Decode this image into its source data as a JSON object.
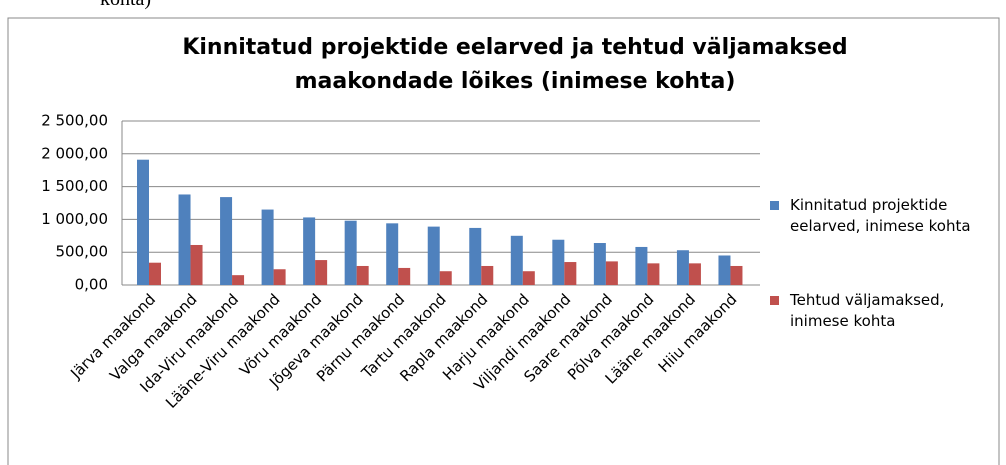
{
  "caption_fragment": "kohta)",
  "chart_data": {
    "type": "bar",
    "title": [
      "Kinnitatud projektide eelarved ja tehtud väljamaksed",
      "maakondade lõikes (inimese kohta)"
    ],
    "categories": [
      "Järva maakond",
      "Valga maakond",
      "Ida-Viru maakond",
      "Lääne-Viru maakond",
      "Võru maakond",
      "Jõgeva maakond",
      "Pärnu maakond",
      "Tartu maakond",
      "Rapla maakond",
      "Harju maakond",
      "Viljandi maakond",
      "Saare maakond",
      "Põlva maakond",
      "Lääne maakond",
      "Hiiu maakond"
    ],
    "series": [
      {
        "name": "Kinnitatud projektide eelarved, inimese kohta",
        "color": "#4f81bd",
        "values": [
          1910,
          1380,
          1340,
          1150,
          1030,
          980,
          940,
          890,
          870,
          750,
          690,
          640,
          580,
          530,
          450
        ]
      },
      {
        "name": "Tehtud väljamaksed, inimese kohta",
        "color": "#c0504d",
        "values": [
          340,
          610,
          150,
          240,
          380,
          290,
          260,
          210,
          290,
          210,
          350,
          360,
          330,
          330,
          290
        ]
      }
    ],
    "ylim": [
      0,
      2500
    ],
    "yticks": [
      {
        "value": 0,
        "label": "0,00"
      },
      {
        "value": 500,
        "label": "500,00"
      },
      {
        "value": 1000,
        "label": "1 000,00"
      },
      {
        "value": 1500,
        "label": "1 500,00"
      },
      {
        "value": 2000,
        "label": "2 000,00"
      },
      {
        "value": 2500,
        "label": "2 500,00"
      }
    ],
    "grid": true,
    "legend": "right"
  }
}
